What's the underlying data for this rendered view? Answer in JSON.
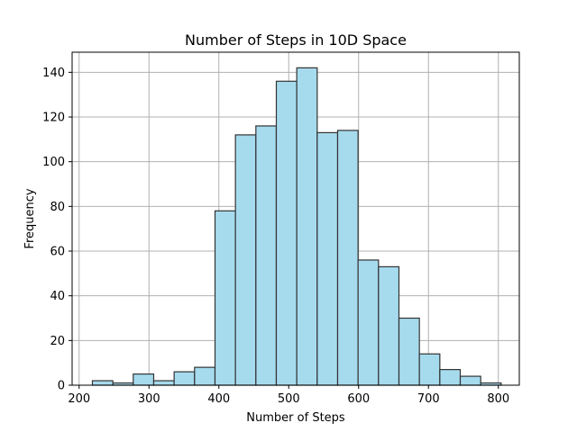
{
  "chart_data": {
    "type": "bar",
    "title": "Number of Steps in 10D Space",
    "xlabel": "Number of Steps",
    "ylabel": "Frequency",
    "xlim": [
      190,
      830
    ],
    "ylim": [
      0,
      149
    ],
    "x_ticks": [
      200,
      300,
      400,
      500,
      600,
      700,
      800
    ],
    "y_ticks": [
      0,
      20,
      40,
      60,
      80,
      100,
      120,
      140
    ],
    "grid": true,
    "bin_edges": [
      219,
      248.25,
      277.5,
      306.75,
      336,
      365.25,
      394.5,
      423.75,
      453,
      482.25,
      511.5,
      540.75,
      570,
      599.25,
      628.5,
      657.75,
      687,
      716.25,
      745.5,
      774.75,
      804
    ],
    "bar_width_steps": 30,
    "values": [
      2,
      1,
      5,
      2,
      6,
      8,
      78,
      112,
      116,
      136,
      142,
      113,
      114,
      56,
      53,
      30,
      14,
      7,
      4,
      1
    ],
    "bar_color": "#a6dbee",
    "edge_color": "#333333"
  }
}
